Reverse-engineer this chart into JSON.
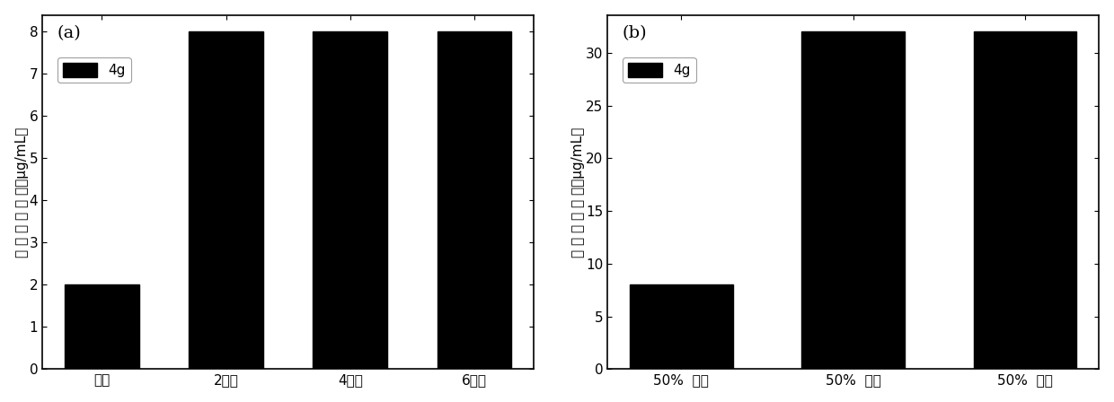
{
  "panel_a": {
    "label": "(a)",
    "categories": [
      "肉汤",
      "2小时",
      "4小时",
      "6小时"
    ],
    "values": [
      2,
      8,
      8,
      8
    ],
    "ylabel": "最 低 杀 菌 浓 度（μg/mL）",
    "ylim": [
      0,
      8.4
    ],
    "yticks": [
      0,
      1,
      2,
      3,
      4,
      5,
      6,
      7,
      8
    ],
    "legend_label": "4g",
    "bar_color": "#000000",
    "bar_width": 0.6
  },
  "panel_b": {
    "label": "(b)",
    "categories": [
      "50%  血浆",
      "50%  血清",
      "50%  全血"
    ],
    "values": [
      8,
      32,
      32
    ],
    "ylabel": "最 低 杀 菌 浓 度（μg/mL）",
    "ylim": [
      0,
      33.6
    ],
    "yticks": [
      0,
      5,
      10,
      15,
      20,
      25,
      30
    ],
    "legend_label": "4g",
    "bar_color": "#000000",
    "bar_width": 0.6
  },
  "figure_bg": "#ffffff",
  "axes_bg": "#ffffff",
  "font_size_labels": 11,
  "font_size_ticks": 11,
  "font_size_legend": 11,
  "font_size_panel_label": 14
}
